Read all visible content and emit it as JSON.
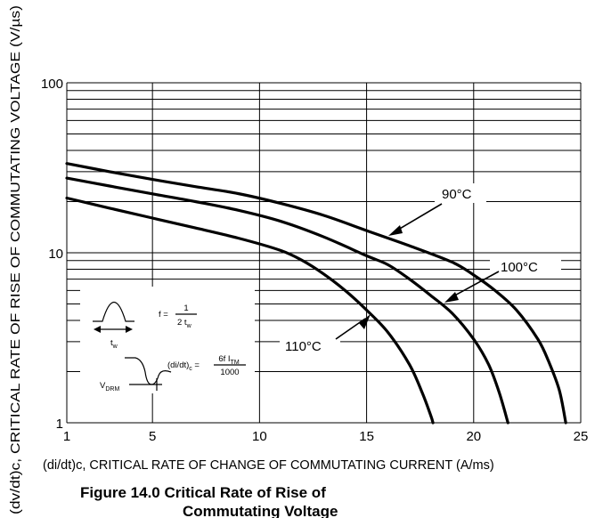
{
  "chart_data": {
    "type": "line",
    "x_scale": "linear",
    "y_scale": "log",
    "xlim": [
      1,
      25
    ],
    "ylim": [
      1,
      100
    ],
    "x_ticks": [
      "1",
      "5",
      "10",
      "15",
      "20",
      "25"
    ],
    "y_ticks": [
      "1",
      "10",
      "100"
    ],
    "grid": true,
    "xlabel": "(di/dt)c, CRITICAL RATE OF CHANGE OF COMMUTATING CURRENT (A/ms)",
    "ylabel": "(dv/dt)c, CRITICAL RATE OF RISE OF COMMUTATING VOLTAGE (V/µs)",
    "caption_line1": "Figure 14.0  Critical Rate of Rise of",
    "caption_line2": "Commutating Voltage",
    "series": [
      {
        "name": "90°C",
        "points": [
          [
            1,
            33.5
          ],
          [
            3,
            30
          ],
          [
            5,
            27
          ],
          [
            7,
            24.5
          ],
          [
            9,
            22.3
          ],
          [
            11,
            19.5
          ],
          [
            13,
            16.6
          ],
          [
            15,
            13.5
          ],
          [
            17,
            11
          ],
          [
            19,
            8.8
          ],
          [
            20,
            7.4
          ],
          [
            21,
            6
          ],
          [
            22,
            4.6
          ],
          [
            23,
            3.1
          ],
          [
            23.5,
            2.3
          ],
          [
            24,
            1.55
          ],
          [
            24.3,
            1
          ]
        ]
      },
      {
        "name": "100°C",
        "points": [
          [
            1,
            27.5
          ],
          [
            3,
            24.7
          ],
          [
            5,
            22.2
          ],
          [
            7,
            20
          ],
          [
            9,
            17.8
          ],
          [
            11,
            15.3
          ],
          [
            13,
            12.4
          ],
          [
            15,
            9.6
          ],
          [
            16,
            8.5
          ],
          [
            17,
            7
          ],
          [
            18,
            5.6
          ],
          [
            19,
            4.4
          ],
          [
            20,
            3.1
          ],
          [
            20.7,
            2.2
          ],
          [
            21.2,
            1.5
          ],
          [
            21.6,
            1
          ]
        ]
      },
      {
        "name": "110°C",
        "points": [
          [
            1,
            21
          ],
          [
            3,
            18.3
          ],
          [
            5,
            16
          ],
          [
            7,
            14
          ],
          [
            9,
            12.2
          ],
          [
            11,
            10.3
          ],
          [
            12,
            9
          ],
          [
            13,
            7.5
          ],
          [
            14,
            6
          ],
          [
            15,
            4.6
          ],
          [
            16,
            3.4
          ],
          [
            17,
            2.2
          ],
          [
            17.6,
            1.5
          ],
          [
            18,
            1.1
          ],
          [
            18.1,
            1
          ]
        ]
      }
    ]
  },
  "inset": {
    "f_label": "f =",
    "f_num": "1",
    "f_den_prefix": "2 t",
    "f_den_sub": "w",
    "tw_main": "t",
    "tw_sub": "w",
    "vdrm_main": "V",
    "vdrm_sub": "DRM",
    "didt_main": "(di/dt)",
    "didt_sub": "c",
    "didt_eq": " =",
    "didt_num_prefix": "6f I",
    "didt_num_sub": "TM",
    "didt_den": "1000"
  }
}
